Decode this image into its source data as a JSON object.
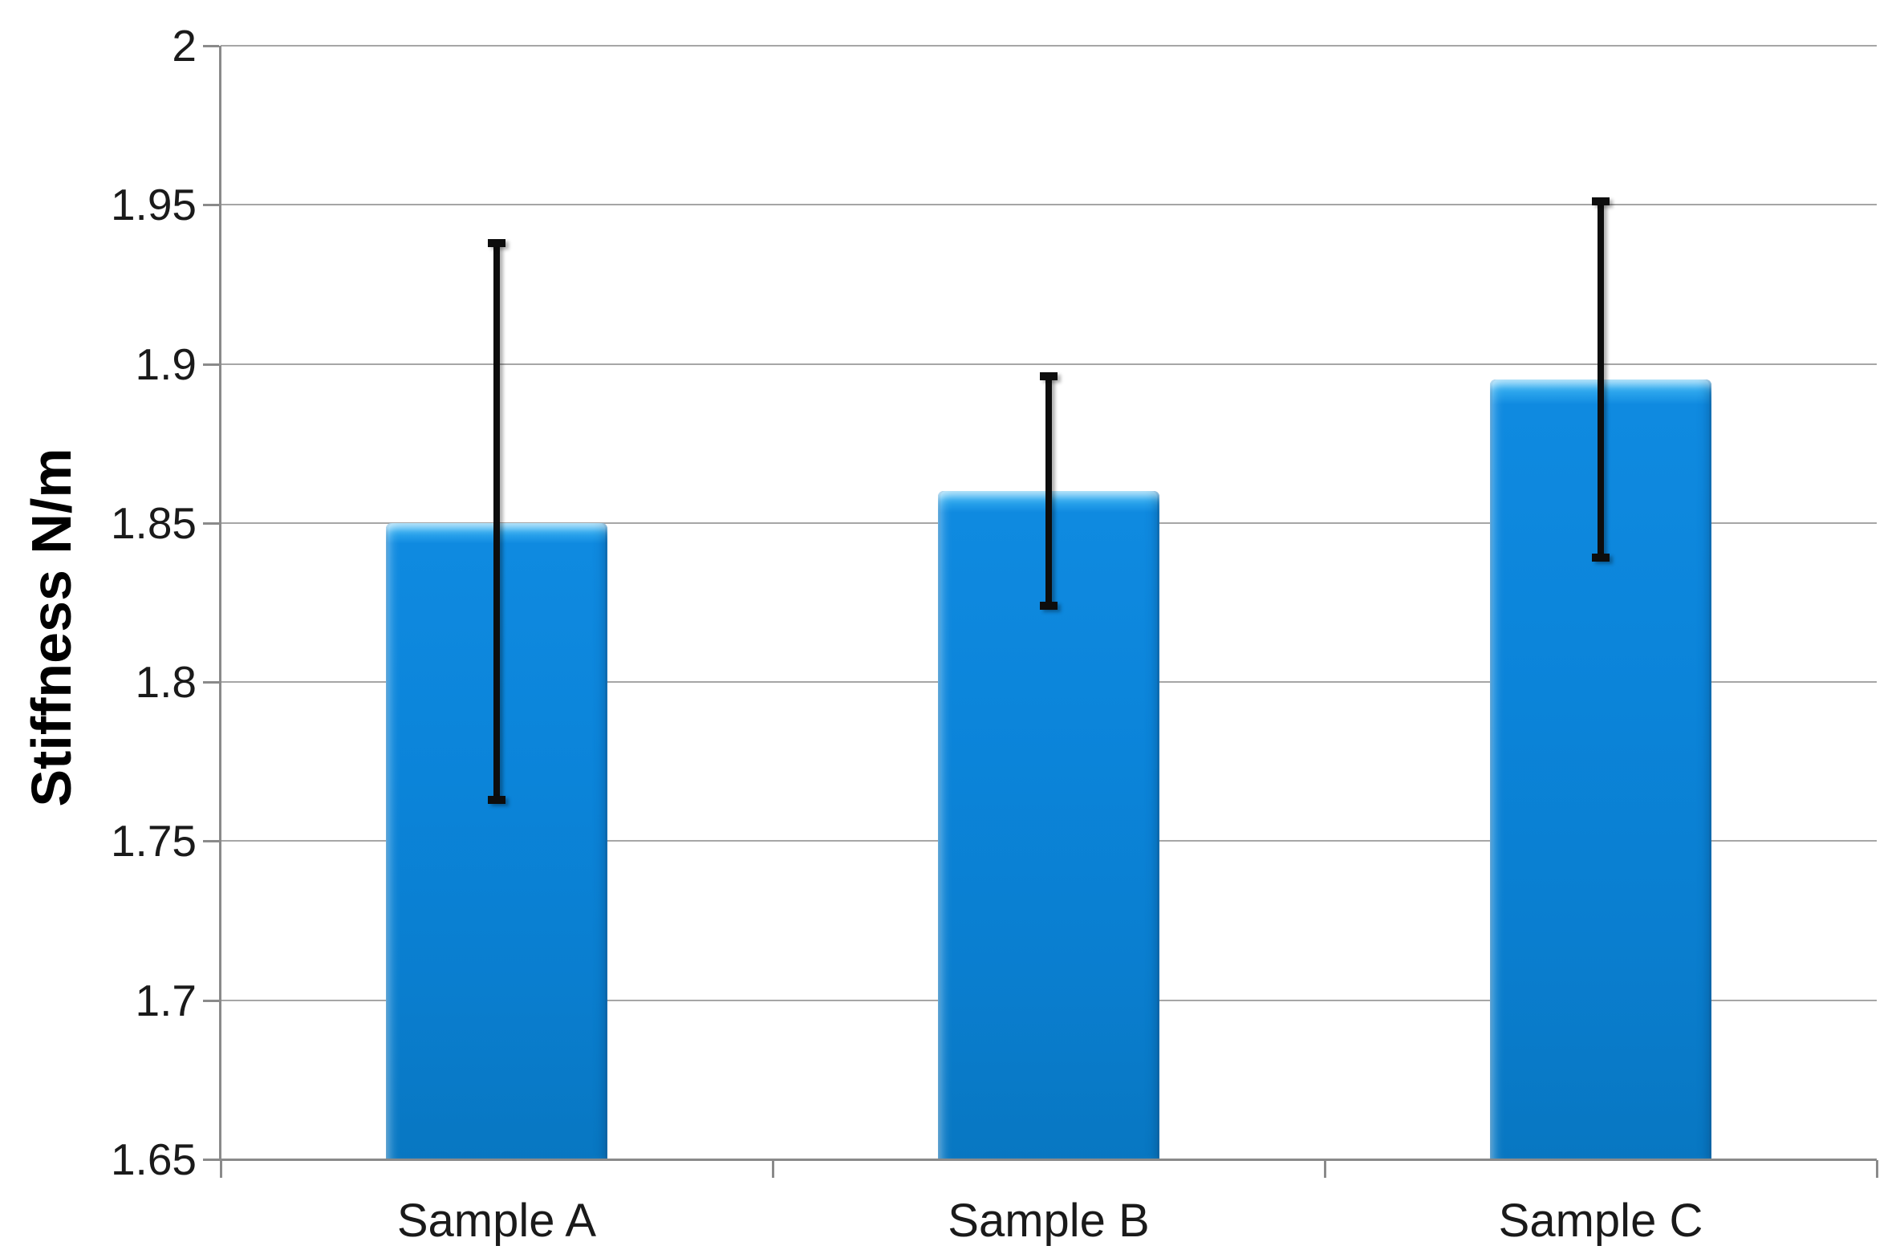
{
  "chart_data": {
    "type": "bar",
    "title": "",
    "ylabel": "Stiffness N/m",
    "xlabel": "",
    "categories": [
      "Sample A",
      "Sample B",
      "Sample C"
    ],
    "values": [
      1.85,
      1.86,
      1.895
    ],
    "error_bars": {
      "symmetric": true,
      "plus_minus": [
        0.088,
        0.036,
        0.056
      ],
      "upper": [
        1.938,
        1.896,
        1.951
      ],
      "lower": [
        1.763,
        1.824,
        1.839
      ]
    },
    "ylim": [
      1.65,
      2.0
    ],
    "ytick_step": 0.05,
    "ytick_labels": [
      "2",
      "1.95",
      "1.9",
      "1.85",
      "1.8",
      "1.75",
      "1.7",
      "1.65"
    ],
    "grid": "horizontal",
    "legend_position": "none",
    "colors": {
      "bar_fill": "#0b84d9",
      "bar_highlight": "#63c7f8",
      "bar_fill_bottom": "#0877c2",
      "error_bar": "#0d0d0d",
      "gridline": "#a6a6a6",
      "axis": "#8a8a8a",
      "text": "#1a1a1a",
      "background": "#ffffff"
    }
  }
}
